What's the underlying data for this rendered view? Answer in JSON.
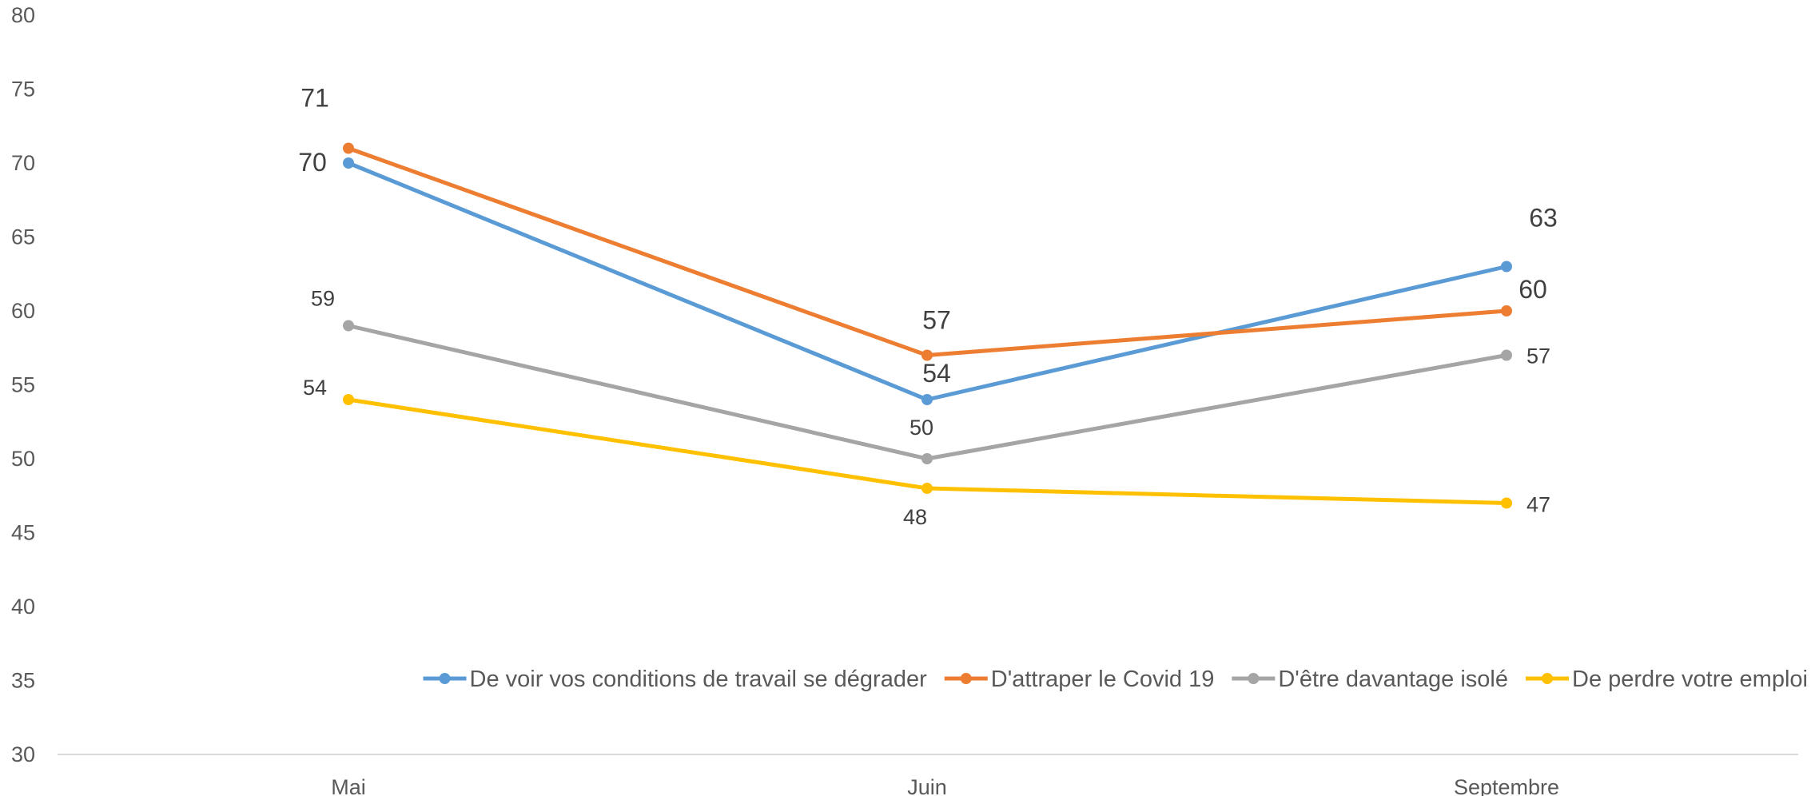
{
  "chart_data": {
    "type": "line",
    "categories": [
      "Mai",
      "Juin",
      "Septembre"
    ],
    "ylim": [
      30,
      80
    ],
    "yticks": [
      30,
      35,
      40,
      45,
      50,
      55,
      60,
      65,
      70,
      75,
      80
    ],
    "grid": false,
    "legend_position": "bottom-right",
    "series": [
      {
        "name": "De voir vos conditions de travail se dégrader",
        "color": "#5B9BD5",
        "values": [
          70,
          54,
          63
        ]
      },
      {
        "name": "D'attraper le Covid 19",
        "color": "#ED7D31",
        "values": [
          71,
          57,
          60
        ]
      },
      {
        "name": "D'être davantage isolé",
        "color": "#A5A5A5",
        "values": [
          59,
          50,
          57
        ]
      },
      {
        "name": "De perdre votre emploi",
        "color": "#FFC000",
        "values": [
          54,
          48,
          47
        ]
      }
    ]
  }
}
